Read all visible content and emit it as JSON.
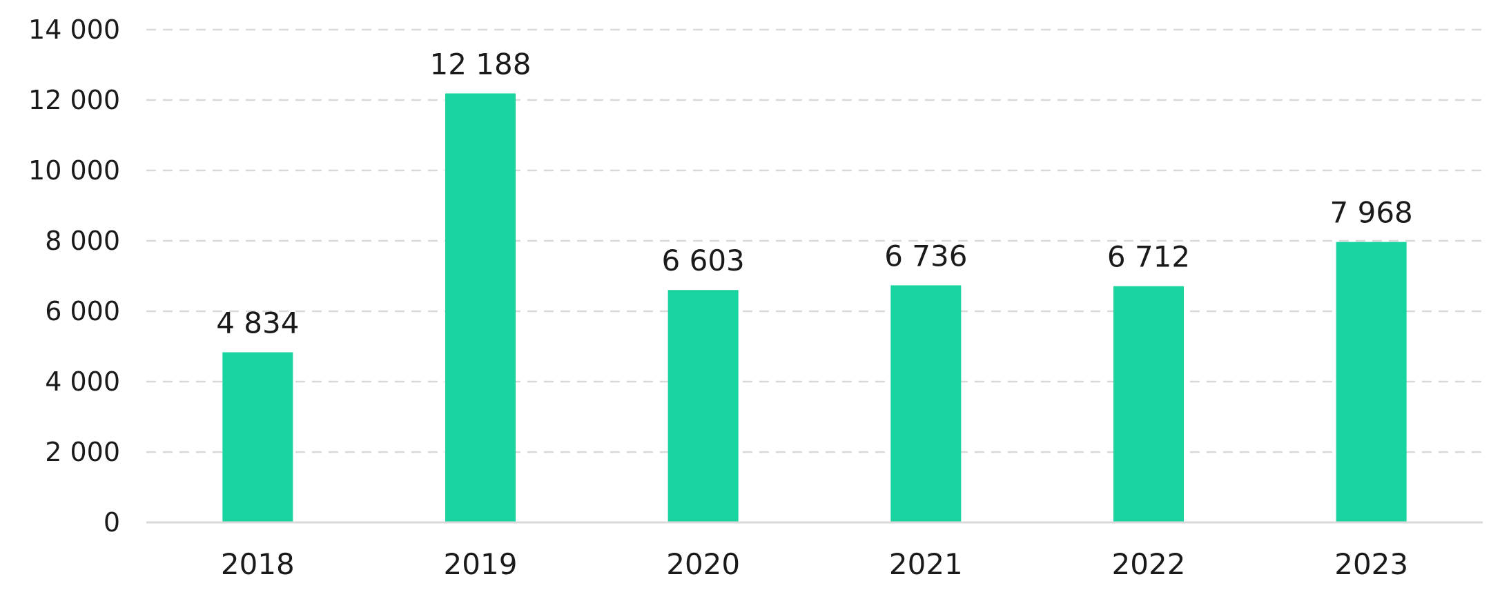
{
  "chart_data": {
    "type": "bar",
    "categories": [
      "2018",
      "2019",
      "2020",
      "2021",
      "2022",
      "2023"
    ],
    "values": [
      4834,
      12188,
      6603,
      6736,
      6712,
      7968
    ],
    "value_labels": [
      "4 834",
      "12 188",
      "6 603",
      "6 736",
      "6 712",
      "7 968"
    ],
    "ylim": [
      0,
      14000
    ],
    "yticks": [
      0,
      2000,
      4000,
      6000,
      8000,
      10000,
      12000,
      14000
    ],
    "ytick_labels": [
      "0",
      "2 000",
      "4 000",
      "6 000",
      "8 000",
      "10 000",
      "12 000",
      "14 000"
    ],
    "title": "",
    "xlabel": "",
    "ylabel": "",
    "grid": true,
    "grid_style": "dashed",
    "legend": "none",
    "bar_color": "#19d49e",
    "grid_color": "#d9d9d9",
    "text_color": "#1a1a1a"
  }
}
